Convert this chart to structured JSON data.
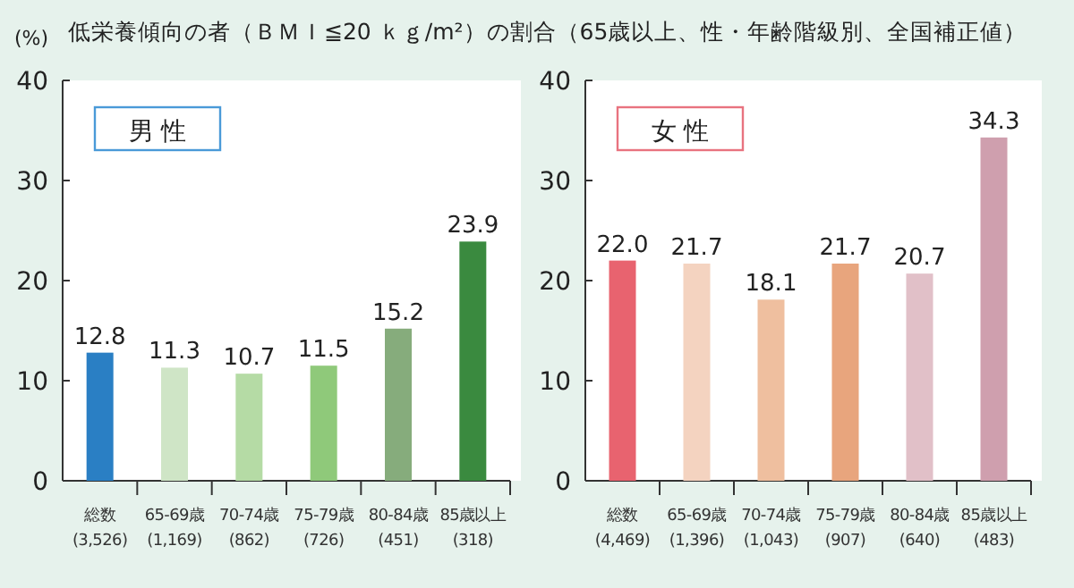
{
  "chart_data": [
    {
      "type": "bar",
      "title": "低栄養傾向の者（ＢＭＩ≦20 ｋｇ/m²）の割合（65歳以上、性・年齢階級別、全国補正値）",
      "subtitle": "男 性",
      "ylabel": "(%)",
      "categories": [
        "総数 (3,526)",
        "65-69歳 (1,169)",
        "70-74歳 (862)",
        "75-79歳 (726)",
        "80-84歳 (451)",
        "85歳以上 (318)"
      ],
      "values": [
        12.8,
        11.3,
        10.7,
        11.5,
        15.2,
        23.9
      ],
      "colors": [
        "#2a7fc4",
        "#cfe5c6",
        "#b5dba5",
        "#8fc97a",
        "#86ac7c",
        "#3a8a3f"
      ],
      "ylim": [
        0,
        40
      ],
      "yticks": [
        0,
        10,
        20,
        30,
        40
      ],
      "value_labels": [
        "12.8",
        "11.3",
        "10.7",
        "11.5",
        "15.2",
        "23.9"
      ]
    },
    {
      "type": "bar",
      "subtitle": "女 性",
      "categories": [
        "総数 (4,469)",
        "65-69歳 (1,396)",
        "70-74歳 (1,043)",
        "75-79歳 (907)",
        "80-84歳 (640)",
        "85歳以上 (483)"
      ],
      "values": [
        22.0,
        21.7,
        18.1,
        21.7,
        20.7,
        34.3
      ],
      "colors": [
        "#e8636f",
        "#f4d3c0",
        "#efbf9f",
        "#e8a57d",
        "#e1c0c8",
        "#cf9fae"
      ],
      "ylim": [
        0,
        40
      ],
      "yticks": [
        0,
        10,
        20,
        30,
        40
      ],
      "value_labels": [
        "22.0",
        "21.7",
        "18.1",
        "21.7",
        "20.7",
        "34.3"
      ]
    }
  ]
}
